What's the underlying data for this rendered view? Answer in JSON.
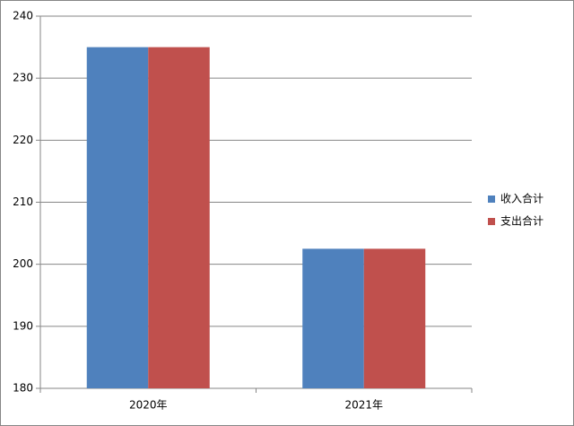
{
  "chart_data": {
    "type": "bar",
    "categories": [
      "2020年",
      "2021年"
    ],
    "series": [
      {
        "name": "收入合计",
        "color": "#4f81bd",
        "values": [
          235,
          202.5
        ]
      },
      {
        "name": "支出合计",
        "color": "#c0504d",
        "values": [
          235,
          202.5
        ]
      }
    ],
    "ylim": [
      180,
      240
    ],
    "yticks": [
      180,
      190,
      200,
      210,
      220,
      230,
      240
    ],
    "grid": true,
    "legend": "right"
  }
}
